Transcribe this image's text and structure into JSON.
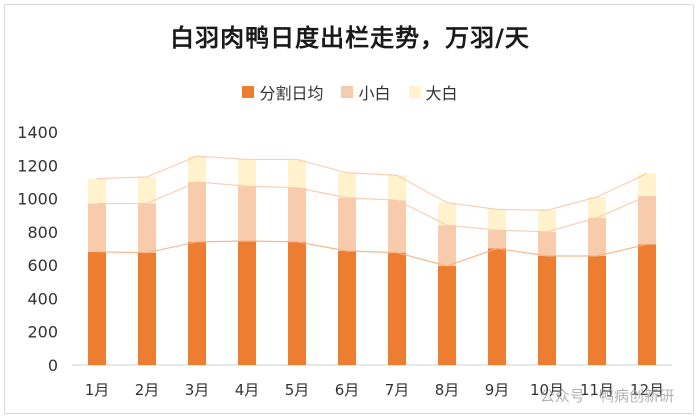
{
  "chart_data": {
    "type": "bar",
    "stacked": true,
    "title": "白羽肉鸭日度出栏走势，万羽/天",
    "categories": [
      "1月",
      "2月",
      "3月",
      "4月",
      "5月",
      "6月",
      "7月",
      "8月",
      "9月",
      "10月",
      "11月",
      "12月"
    ],
    "series": [
      {
        "name": "分割日均",
        "color": "#ed7d31",
        "values": [
          680,
          675,
          740,
          745,
          740,
          685,
          675,
          595,
          700,
          655,
          655,
          725
        ]
      },
      {
        "name": "小白",
        "color": "#f8cbad",
        "values": [
          290,
          295,
          360,
          330,
          325,
          320,
          315,
          245,
          110,
          145,
          230,
          290
        ]
      },
      {
        "name": "大白",
        "color": "#fff2cc",
        "values": [
          150,
          160,
          155,
          160,
          170,
          150,
          150,
          135,
          125,
          130,
          125,
          135
        ]
      }
    ],
    "ylim": [
      0,
      1400
    ],
    "yticks": [
      0,
      200,
      400,
      600,
      800,
      1000,
      1200,
      1400
    ],
    "grid": false,
    "legend_position": "top"
  },
  "watermark": "公众号 · 鸭病创新研"
}
